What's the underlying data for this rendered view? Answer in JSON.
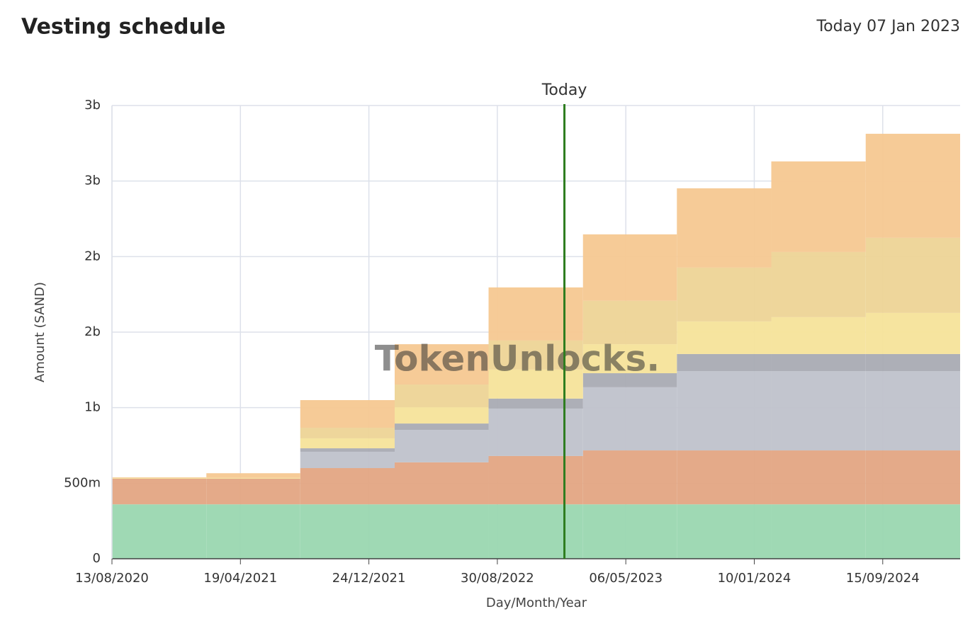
{
  "header": {
    "title": "Vesting schedule",
    "today": "Today 07 Jan 2023"
  },
  "chart_data": {
    "type": "stacked-step-area",
    "x_label": "Day/Month/Year",
    "y_label": "Amount (SAND)",
    "watermark": "TokenUnlocks.",
    "x": [
      "2020-08-13",
      "2021-02-12",
      "2021-08-13",
      "2022-02-12",
      "2022-08-13",
      "2023-02-12",
      "2023-08-13",
      "2024-02-12",
      "2024-08-13"
    ],
    "xlim": [
      "2020-08-13",
      "2025-02-12"
    ],
    "xticks": [
      {
        "value": "2020-08-13",
        "label": "13/08/2020"
      },
      {
        "value": "2021-04-19",
        "label": "19/04/2021"
      },
      {
        "value": "2021-12-24",
        "label": "24/12/2021"
      },
      {
        "value": "2022-08-30",
        "label": "30/08/2022"
      },
      {
        "value": "2023-05-06",
        "label": "06/05/2023"
      },
      {
        "value": "2024-01-10",
        "label": "10/01/2024"
      },
      {
        "value": "2024-09-15",
        "label": "15/09/2024"
      }
    ],
    "ylim": [
      0,
      3000
    ],
    "yticks": [
      0,
      {
        "value": 500,
        "label": "500m"
      },
      {
        "value": 1000,
        "label": "1b"
      },
      {
        "value": 1500,
        "label": "2b"
      },
      {
        "value": 2000,
        "label": "2b"
      },
      {
        "value": 2500,
        "label": "3b"
      },
      {
        "value": 3000,
        "label": "3b"
      }
    ],
    "grid": true,
    "series": [
      {
        "color": "#9ad7b0",
        "values": [
          360,
          360,
          360,
          360,
          360,
          360,
          360,
          360,
          360
        ]
      },
      {
        "color": "#e3a583",
        "values": [
          170,
          170,
          240,
          278,
          320,
          357,
          357,
          357,
          357
        ]
      },
      {
        "color": "#bfc2cb",
        "values": [
          0,
          0,
          108,
          215,
          314,
          418,
          525,
          525,
          525
        ]
      },
      {
        "color": "#a9abb3",
        "values": [
          0,
          0,
          23,
          42,
          66,
          93,
          113,
          113,
          113
        ]
      },
      {
        "color": "#f5e39a",
        "values": [
          5,
          5,
          66,
          108,
          192,
          192,
          216,
          244,
          272
        ]
      },
      {
        "color": "#edd496",
        "values": [
          0,
          0,
          70,
          150,
          192,
          287,
          356,
          431,
          497
        ]
      },
      {
        "color": "#f5c891",
        "values": [
          4,
          31,
          183,
          267,
          352,
          440,
          525,
          600,
          689
        ]
      }
    ],
    "annotation": {
      "x": "2023-01-07",
      "label": "Today",
      "color": "#2e7d1f"
    }
  }
}
